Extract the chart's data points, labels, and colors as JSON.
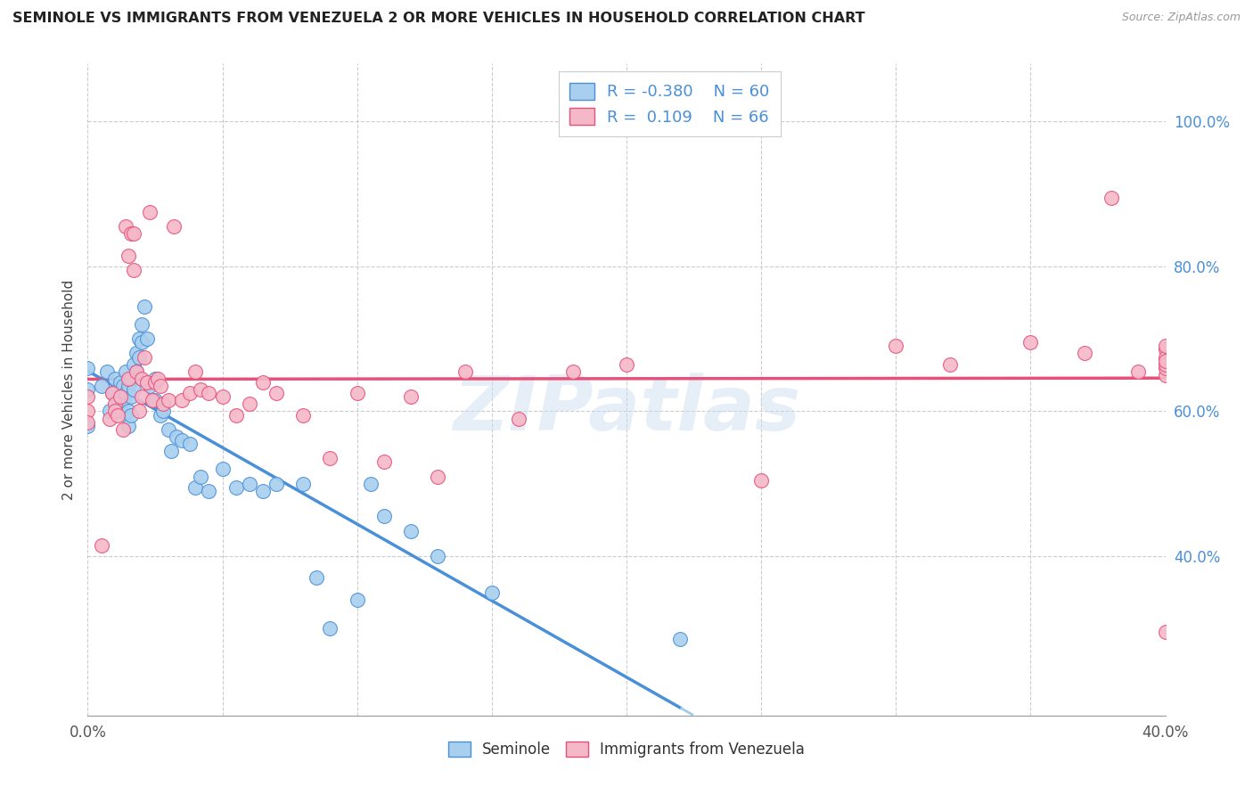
{
  "title": "SEMINOLE VS IMMIGRANTS FROM VENEZUELA 2 OR MORE VEHICLES IN HOUSEHOLD CORRELATION CHART",
  "source": "Source: ZipAtlas.com",
  "ylabel": "2 or more Vehicles in Household",
  "xlim": [
    0.0,
    0.4
  ],
  "ylim": [
    0.18,
    1.08
  ],
  "color_blue": "#a8d0ee",
  "color_pink": "#f5b8c8",
  "color_blue_line": "#4a90d9",
  "color_pink_line": "#e8507a",
  "color_dashed": "#a0cce8",
  "watermark": "ZIPatlas",
  "seminole_x": [
    0.0,
    0.0,
    0.0,
    0.005,
    0.007,
    0.008,
    0.009,
    0.01,
    0.01,
    0.011,
    0.012,
    0.012,
    0.013,
    0.013,
    0.014,
    0.014,
    0.015,
    0.015,
    0.015,
    0.016,
    0.016,
    0.016,
    0.017,
    0.017,
    0.018,
    0.018,
    0.019,
    0.019,
    0.02,
    0.02,
    0.021,
    0.022,
    0.023,
    0.025,
    0.025,
    0.027,
    0.028,
    0.03,
    0.031,
    0.033,
    0.035,
    0.038,
    0.04,
    0.042,
    0.045,
    0.05,
    0.055,
    0.06,
    0.065,
    0.07,
    0.08,
    0.085,
    0.09,
    0.1,
    0.105,
    0.11,
    0.12,
    0.13,
    0.15,
    0.22
  ],
  "seminole_y": [
    0.66,
    0.63,
    0.58,
    0.635,
    0.655,
    0.6,
    0.625,
    0.645,
    0.625,
    0.615,
    0.64,
    0.6,
    0.635,
    0.615,
    0.655,
    0.625,
    0.635,
    0.6,
    0.58,
    0.645,
    0.62,
    0.595,
    0.665,
    0.63,
    0.68,
    0.655,
    0.7,
    0.675,
    0.72,
    0.695,
    0.745,
    0.7,
    0.635,
    0.615,
    0.645,
    0.595,
    0.6,
    0.575,
    0.545,
    0.565,
    0.56,
    0.555,
    0.495,
    0.51,
    0.49,
    0.52,
    0.495,
    0.5,
    0.49,
    0.5,
    0.5,
    0.37,
    0.3,
    0.34,
    0.5,
    0.455,
    0.435,
    0.4,
    0.35,
    0.285
  ],
  "venezuela_x": [
    0.0,
    0.0,
    0.0,
    0.005,
    0.008,
    0.009,
    0.01,
    0.01,
    0.011,
    0.012,
    0.013,
    0.014,
    0.015,
    0.015,
    0.016,
    0.017,
    0.017,
    0.018,
    0.019,
    0.02,
    0.02,
    0.021,
    0.022,
    0.023,
    0.024,
    0.025,
    0.026,
    0.027,
    0.028,
    0.03,
    0.032,
    0.035,
    0.038,
    0.04,
    0.042,
    0.045,
    0.05,
    0.055,
    0.06,
    0.065,
    0.07,
    0.08,
    0.09,
    0.1,
    0.11,
    0.12,
    0.13,
    0.14,
    0.16,
    0.18,
    0.2,
    0.25,
    0.3,
    0.32,
    0.35,
    0.37,
    0.38,
    0.39,
    0.4,
    0.4,
    0.4,
    0.4,
    0.4,
    0.4,
    0.4,
    0.4
  ],
  "venezuela_y": [
    0.62,
    0.6,
    0.585,
    0.415,
    0.59,
    0.625,
    0.61,
    0.6,
    0.595,
    0.62,
    0.575,
    0.855,
    0.815,
    0.645,
    0.845,
    0.845,
    0.795,
    0.655,
    0.6,
    0.645,
    0.62,
    0.675,
    0.64,
    0.875,
    0.615,
    0.64,
    0.645,
    0.635,
    0.61,
    0.615,
    0.855,
    0.615,
    0.625,
    0.655,
    0.63,
    0.625,
    0.62,
    0.595,
    0.61,
    0.64,
    0.625,
    0.595,
    0.535,
    0.625,
    0.53,
    0.62,
    0.51,
    0.655,
    0.59,
    0.655,
    0.665,
    0.505,
    0.69,
    0.665,
    0.695,
    0.68,
    0.895,
    0.655,
    0.685,
    0.675,
    0.65,
    0.66,
    0.665,
    0.67,
    0.69,
    0.295
  ]
}
